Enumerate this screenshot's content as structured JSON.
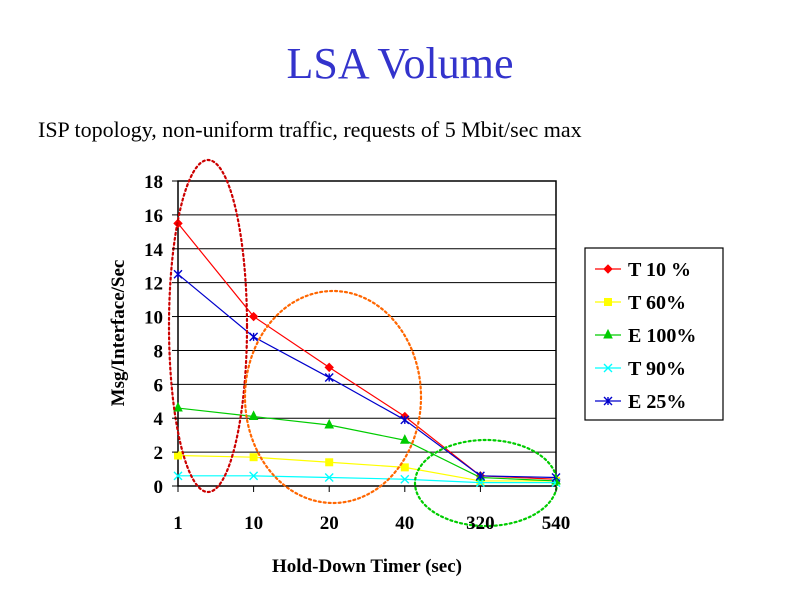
{
  "slide": {
    "title": "LSA Volume",
    "subtitle": "ISP topology, non-uniform traffic, requests of 5 Mbit/sec max"
  },
  "chart_data": {
    "type": "line",
    "title": "",
    "xlabel": "Hold-Down Timer (sec)",
    "ylabel": "Msg/Interface/Sec",
    "categories": [
      "1",
      "10",
      "20",
      "40",
      "320",
      "540"
    ],
    "ylim": [
      0,
      18
    ],
    "yticks": [
      0,
      2,
      4,
      6,
      8,
      10,
      12,
      14,
      16,
      18
    ],
    "grid": "horizontal",
    "legend_position": "right",
    "series": [
      {
        "name": "T 10 %",
        "color": "#ff0000",
        "marker": "diamond",
        "values": [
          15.5,
          10.0,
          7.0,
          4.1,
          0.6,
          0.4
        ]
      },
      {
        "name": "T 60%",
        "color": "#ffff00",
        "marker": "square",
        "values": [
          1.8,
          1.7,
          1.4,
          1.1,
          0.3,
          0.3
        ]
      },
      {
        "name": "E 100%",
        "color": "#00cc00",
        "marker": "triangle",
        "values": [
          4.6,
          4.1,
          3.6,
          2.7,
          0.5,
          0.3
        ]
      },
      {
        "name": "T 90%",
        "color": "#00ffff",
        "marker": "x",
        "values": [
          0.6,
          0.6,
          0.5,
          0.4,
          0.2,
          0.2
        ]
      },
      {
        "name": "E 25%",
        "color": "#0000cc",
        "marker": "star",
        "values": [
          12.5,
          8.8,
          6.4,
          3.9,
          0.6,
          0.5
        ]
      }
    ],
    "annotations": [
      {
        "shape": "ellipse",
        "color": "#cc0000",
        "style": "dotted",
        "around": "x=1"
      },
      {
        "shape": "ellipse",
        "color": "#ff6600",
        "style": "dotted",
        "around": "x=10 to 40"
      },
      {
        "shape": "ellipse",
        "color": "#00cc00",
        "style": "dotted",
        "around": "x=320 to 540"
      }
    ]
  }
}
